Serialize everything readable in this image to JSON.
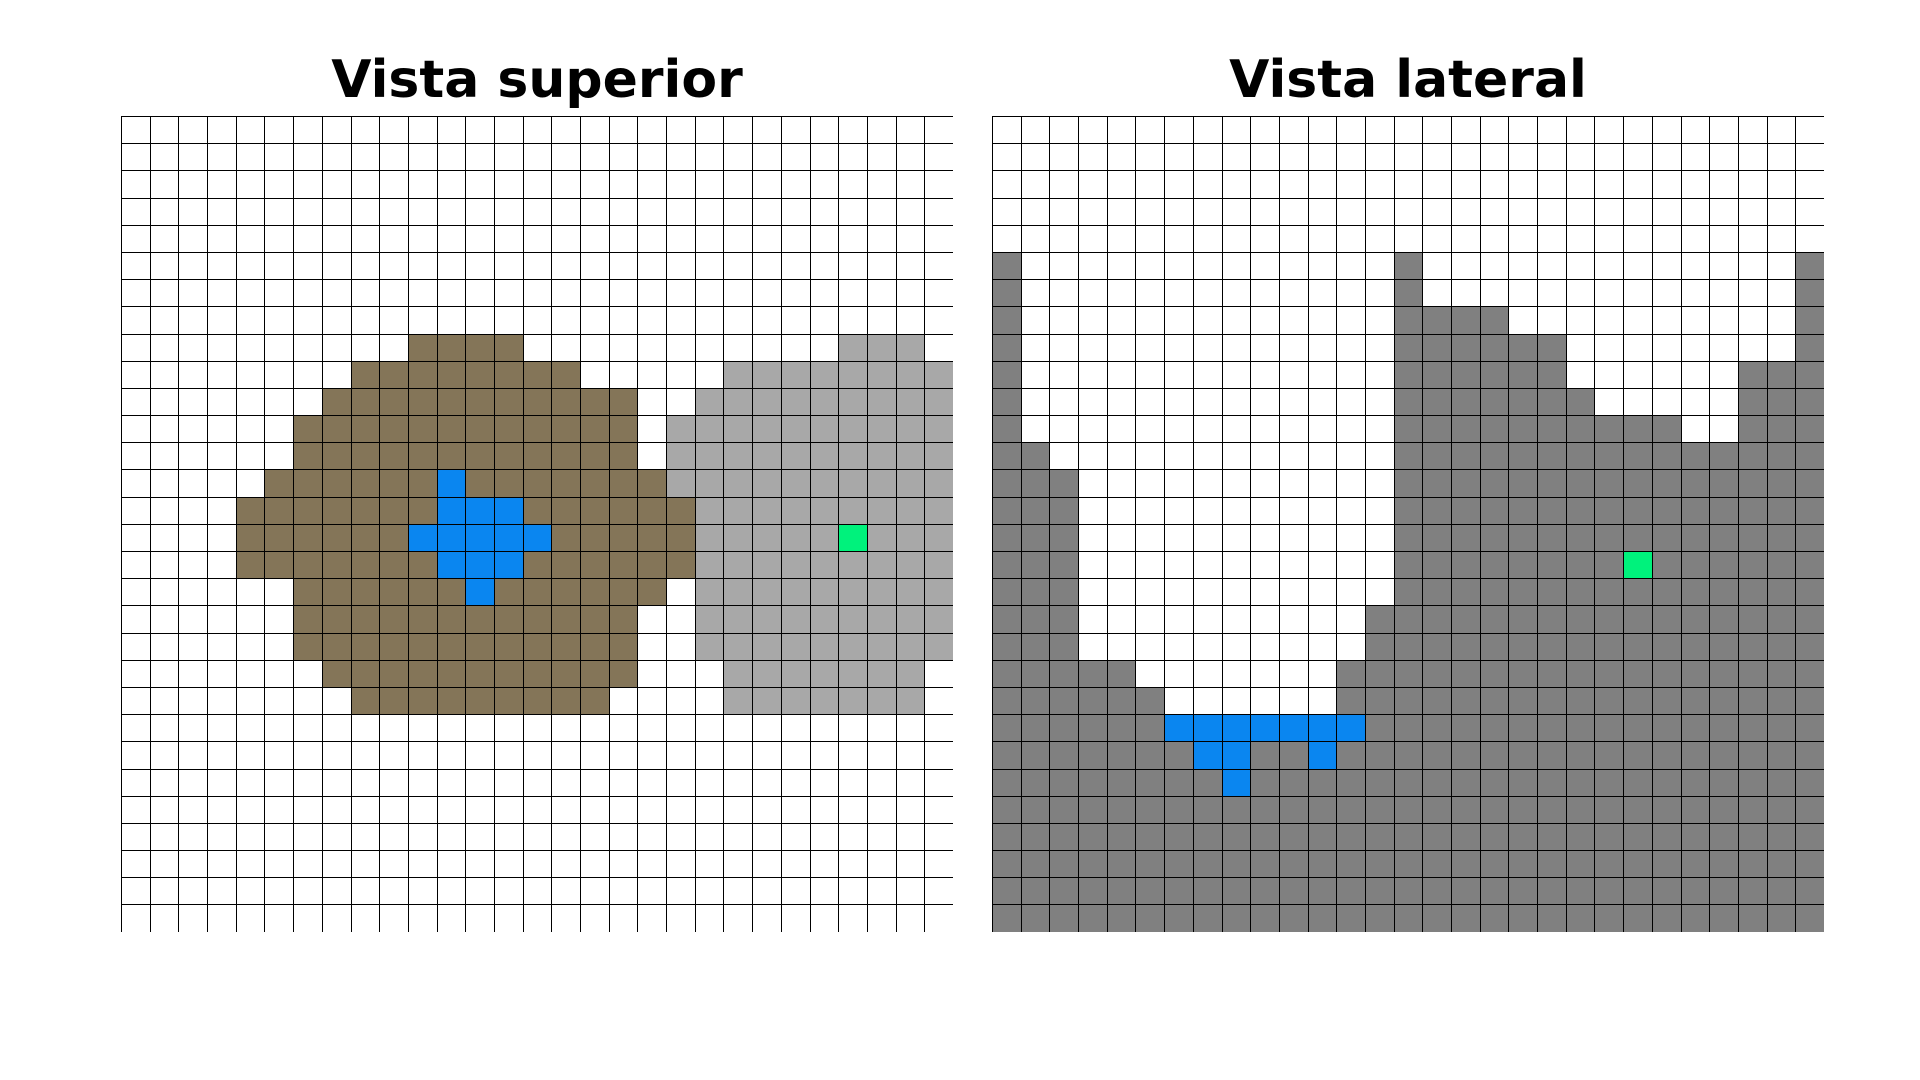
{
  "top_view": {
    "title": "Vista superior",
    "columns": 29,
    "rows": 30,
    "palette": {
      "0": "#ffffff",
      "1": "#847558",
      "2": "#a8a8a8",
      "3": "#0a86f0",
      "4": "#00f27c"
    },
    "cells": [
      "00000000000000000000000000000",
      "00000000000000000000000000000",
      "00000000000000000000000000000",
      "00000000000000000000000000000",
      "00000000000000000000000000000",
      "00000000000000000000000000000",
      "00000000000000000000000000000",
      "00000000000000000000000000000",
      "00000000001111000000000002220",
      "00000000111111110000022222222",
      "00000001111111111100222222222",
      "00000011111111111102222222222",
      "00000011111111111102222222222",
      "00000111111311111112222222222",
      "00001111111333111111222222222",
      "00001111113333311111222224222",
      "00001111111333111111222222222",
      "00000011111131111110222222222",
      "00000011111111111100222222222",
      "00000011111111111100222222222",
      "00000001111111111100022222220",
      "00000000111111111000022222220",
      "00000000000000000000000000000",
      "00000000000000000000000000000",
      "00000000000000000000000000000",
      "00000000000000000000000000000",
      "00000000000000000000000000000",
      "00000000000000000000000000000",
      "00000000000000000000000000000",
      "00000000000000000000000000000"
    ]
  },
  "side_view": {
    "title": "Vista lateral",
    "columns": 29,
    "rows": 30,
    "palette": {
      "0": "#ffffff",
      "1": "#808080",
      "2": "#0a86f0",
      "3": "#00f27c"
    },
    "cells": [
      "00000000000000000000000000000",
      "00000000000000000000000000000",
      "00000000000000000000000000000",
      "00000000000000000000000000000",
      "00000000000000000000000000000",
      "10000000000000100000000000001",
      "10000000000000100000000000001",
      "10000000000000111100000000001",
      "10000000000000111111000000001",
      "10000000000000111111000000111",
      "10000000000000111111100000111",
      "10000000000000111111111100111",
      "11000000000000111111111111111",
      "11100000000000111111111111111",
      "11100000000000111111111111111",
      "11100000000000111111111111111",
      "11100000000000111111113111111",
      "11100000000000111111111111111",
      "11100000000001111111111111111",
      "11100000000001111111111111111",
      "11111000000011111111111111111",
      "11111100000011111111111111111",
      "11111122222221111111111111111",
      "11111112211211111111111111111",
      "11111111211111111111111111111",
      "11111111111111111111111111111",
      "11111111111111111111111111111",
      "11111111111111111111111111111",
      "11111111111111111111111111111",
      "11111111111111111111111111111"
    ]
  }
}
